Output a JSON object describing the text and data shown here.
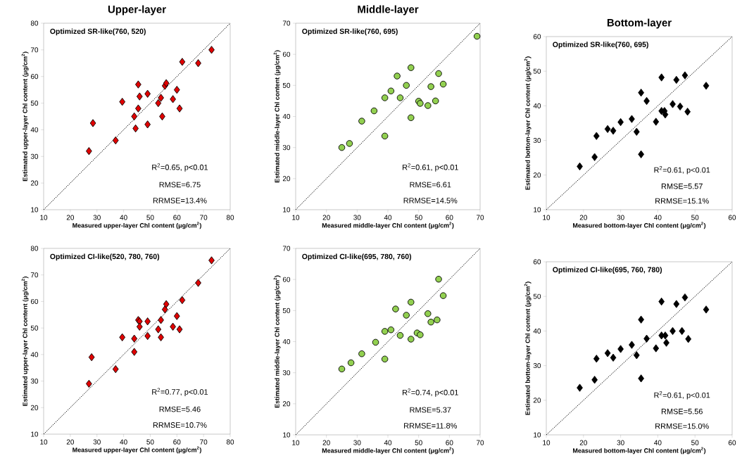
{
  "chart_data": [
    {
      "type": "scatter",
      "title": "Upper-layer",
      "xlabel": "Measured upper-layer Chl content (μg/cm$^{2}$)",
      "ylabel": "Estimated upper-layer Chl content (μg/cm$^{2}$)",
      "xlim": [
        10,
        80
      ],
      "ylim": [
        10,
        80
      ],
      "xticks": [
        10,
        20,
        30,
        40,
        50,
        60,
        70,
        80
      ],
      "yticks": [
        10,
        20,
        30,
        40,
        50,
        60,
        70,
        80
      ],
      "annotations": [
        "Optimized SR-like(760, 520)",
        "R$^{2}$=0.65, p<0.01",
        "RMSE=6.75",
        "RRMSE=13.4%"
      ],
      "series": [
        {
          "color": "#e00000",
          "marker": "diamond",
          "x": [
            27,
            28.5,
            37,
            39.5,
            44,
            44.5,
            45.5,
            45.5,
            46,
            49,
            49,
            53,
            54,
            54.5,
            55.5,
            56,
            58.5,
            60,
            61,
            62,
            68,
            73
          ],
          "values": [
            32,
            42.5,
            36,
            50.5,
            45,
            40.5,
            57,
            48,
            52.5,
            42,
            53.5,
            50,
            52,
            45,
            56.5,
            57.5,
            51.5,
            55,
            48,
            65.5,
            65,
            70
          ]
        },
        {
          "type": "line",
          "color": "#000000",
          "line_style": "dotted",
          "x": [
            10,
            80
          ],
          "values": [
            10,
            80
          ]
        }
      ]
    },
    {
      "type": "scatter",
      "title": "Middle-layer",
      "xlabel": "Measured middle-layer Chl content (μg/cm$^{2}$)",
      "ylabel": "Estimated middle-layer Chl content (μg/cm$^{2}$)",
      "xlim": [
        10,
        70
      ],
      "ylim": [
        10,
        70
      ],
      "xticks": [
        10,
        20,
        30,
        40,
        50,
        60,
        70
      ],
      "yticks": [
        10,
        20,
        30,
        40,
        50,
        60,
        70
      ],
      "annotations": [
        "Optimized SR-like(760, 695)",
        "R$^{2}$=0.61, p<0.01",
        "RMSE=6.61",
        "RRMSE=14.5%"
      ],
      "series": [
        {
          "color": "#92d050",
          "marker": "circle",
          "x": [
            25,
            27.5,
            31.5,
            35.5,
            39,
            39,
            41,
            43,
            44,
            46,
            47.5,
            47.5,
            50,
            50.5,
            53,
            54,
            55.5,
            56.5,
            58,
            69
          ],
          "values": [
            30,
            31.3,
            38.5,
            41.8,
            33.7,
            46,
            48.2,
            53,
            46,
            50,
            55.7,
            39.6,
            44.9,
            44.2,
            43.5,
            49.6,
            45,
            53.8,
            50.4,
            65.8
          ]
        },
        {
          "type": "line",
          "color": "#000000",
          "line_style": "dotted",
          "x": [
            10,
            70
          ],
          "values": [
            10,
            70
          ]
        }
      ]
    },
    {
      "type": "scatter",
      "title": "Bottom-layer",
      "xlabel": "Measured bottom-layer Chl content (μg/cm$^{2}$)",
      "ylabel": "Estimated bottom-layer Chl content (μg/cm$^{2}$)",
      "xlim": [
        10,
        60
      ],
      "ylim": [
        10,
        60
      ],
      "xticks": [
        10,
        20,
        30,
        40,
        50,
        60
      ],
      "yticks": [
        10,
        20,
        30,
        40,
        50,
        60
      ],
      "annotations": [
        "Optimized SR-like(760, 695)",
        "R$^{2}$=0.61, p<0.01",
        "RMSE=5.57",
        "RRMSE=15.1%"
      ],
      "series": [
        {
          "color": "#000000",
          "marker": "diamond",
          "x": [
            19,
            23,
            23.5,
            26.5,
            28,
            30,
            33,
            34.3,
            35.5,
            35.5,
            37,
            39.5,
            41,
            41,
            41.8,
            42,
            44,
            45,
            46,
            47.3,
            48,
            53
          ],
          "values": [
            22.5,
            25.2,
            31.3,
            33.3,
            32.8,
            35.3,
            36.2,
            32.5,
            26,
            43.8,
            41.4,
            35.4,
            38.5,
            48.2,
            38.5,
            37.5,
            40.5,
            47.5,
            39.8,
            48.8,
            38.3,
            45.8
          ]
        },
        {
          "type": "line",
          "color": "#000000",
          "line_style": "dotted",
          "x": [
            10,
            60
          ],
          "values": [
            10,
            60
          ]
        }
      ]
    },
    {
      "type": "scatter",
      "xlabel": "Measured upper-layer Chl content (μg/cm$^{2}$)",
      "ylabel": "Estimated upper-layer Chl content (μg/cm$^{2}$)",
      "xlim": [
        10,
        80
      ],
      "ylim": [
        10,
        80
      ],
      "xticks": [
        10,
        20,
        30,
        40,
        50,
        60,
        70,
        80
      ],
      "yticks": [
        10,
        20,
        30,
        40,
        50,
        60,
        70,
        80
      ],
      "annotations": [
        "Optimized CI-like(520, 780, 760)",
        "R$^{2}$=0.77, p<0.01",
        "RMSE=5.46",
        "RRMSE=10.7%"
      ],
      "series": [
        {
          "color": "#e00000",
          "marker": "diamond",
          "x": [
            27,
            28,
            37,
            39.5,
            44,
            44,
            45.5,
            46,
            46,
            49,
            49,
            53,
            54,
            54,
            55.5,
            56,
            58.5,
            60,
            61,
            62,
            68,
            73
          ],
          "values": [
            29,
            39,
            34.5,
            46.5,
            41,
            46,
            53,
            52.5,
            50.5,
            52.5,
            47,
            49.5,
            53,
            46.5,
            57,
            59,
            50.5,
            54.5,
            49.5,
            60.5,
            67,
            75.5
          ]
        },
        {
          "type": "line",
          "color": "#000000",
          "line_style": "dotted",
          "x": [
            10,
            80
          ],
          "values": [
            10,
            80
          ]
        }
      ]
    },
    {
      "type": "scatter",
      "xlabel": "Measured middle-layer Chl content (μg/cm$^{2}$)",
      "ylabel": "Estimated middle-layer Chl content (μg/cm$^{2}$)",
      "xlim": [
        10,
        70
      ],
      "ylim": [
        10,
        70
      ],
      "xticks": [
        10,
        20,
        30,
        40,
        50,
        60,
        70
      ],
      "yticks": [
        10,
        20,
        30,
        40,
        50,
        60,
        70
      ],
      "annotations": [
        "Optimized CI-like(695, 780, 760)",
        "R$^{2}$=0.74, p<0.01",
        "RMSE=5.37",
        "RRMSE=11.8%"
      ],
      "series": [
        {
          "color": "#92d050",
          "marker": "circle",
          "x": [
            25,
            28,
            31.5,
            36,
            39,
            39,
            41,
            42.5,
            44,
            46,
            47.5,
            47.5,
            49.5,
            50.5,
            53,
            54,
            56,
            56.5,
            58
          ],
          "values": [
            31.2,
            33.2,
            36.1,
            39.8,
            34.4,
            43.3,
            43.8,
            50.5,
            42,
            48.5,
            52.7,
            40.8,
            42.8,
            42.2,
            49,
            46.3,
            47,
            60.1,
            54.8
          ]
        },
        {
          "type": "line",
          "color": "#000000",
          "line_style": "dotted",
          "x": [
            10,
            70
          ],
          "values": [
            10,
            70
          ]
        }
      ]
    },
    {
      "type": "scatter",
      "xlabel": "Measured bottom-layer Chl content (μg/cm$^{2}$)",
      "ylabel": "Estimated bottom-layer Chl content (μg/cm$^{2}$)",
      "xlim": [
        10,
        60
      ],
      "ylim": [
        10,
        60
      ],
      "xticks": [
        10,
        20,
        30,
        40,
        50,
        60
      ],
      "yticks": [
        10,
        20,
        30,
        40,
        50,
        60
      ],
      "annotations": [
        "Optimized CI-like(695, 760, 780)",
        "R$^{2}$=0.61, p<0.01",
        "RMSE=5.56",
        "RRMSE=15.0%"
      ],
      "series": [
        {
          "color": "#000000",
          "marker": "diamond",
          "x": [
            19,
            23,
            23.5,
            26.5,
            28,
            30,
            33,
            34.3,
            35.5,
            35.5,
            37,
            39.5,
            41,
            41,
            42,
            42.3,
            44,
            45,
            46.5,
            47.3,
            48.2,
            53
          ],
          "values": [
            23.6,
            25.9,
            32,
            33.6,
            32.3,
            34.8,
            36,
            33,
            26.3,
            43.3,
            37.8,
            35,
            38.7,
            48.5,
            38.7,
            36.6,
            40,
            47.8,
            40,
            49.7,
            37.7,
            46.2
          ]
        },
        {
          "type": "line",
          "color": "#000000",
          "line_style": "dotted",
          "x": [
            10,
            60
          ],
          "values": [
            10,
            60
          ]
        }
      ]
    }
  ]
}
